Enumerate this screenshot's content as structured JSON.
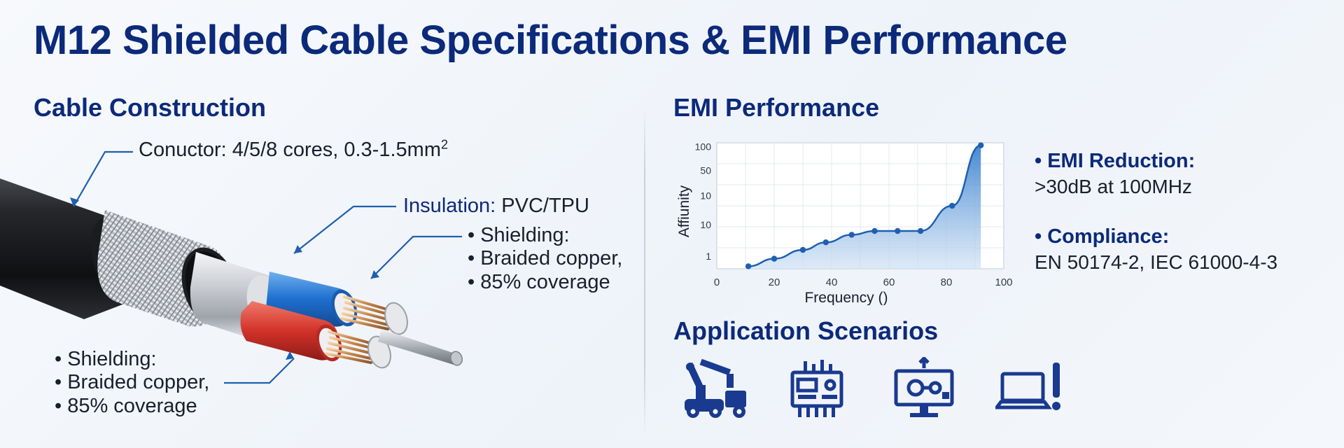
{
  "title": "M12 Shielded Cable Specifications & EMI Performance",
  "construction": {
    "heading": "Cable Construction",
    "conductor_label": "Conuctor: 4/5/8 cores, 0.3-1.5mm",
    "conductor_sup": "2",
    "insulation_key": "Insulation:",
    "insulation_value": " PVC/TPU",
    "shield_right": [
      "• Shielding:",
      "• Braided copper,",
      "• 85% coverage"
    ],
    "shield_left": [
      "• Shielding:",
      "• Braided copper,",
      "• 85% coverage"
    ]
  },
  "emi": {
    "heading": "EMI Performance",
    "stats": [
      {
        "label": "• EMI Reduction:",
        "value": ">30dB at 100MHz"
      },
      {
        "label": "• Compliance:",
        "value": "EN 50174-2, IEC 61000-4-3"
      }
    ]
  },
  "chart_data": {
    "type": "area",
    "title": "",
    "xlabel": "Frequency ()",
    "ylabel": "Affiunity",
    "x_tick_labels": [
      "0",
      "20",
      "40",
      "60",
      "80",
      "100"
    ],
    "y_tick_labels": [
      "1",
      "10",
      "10",
      "50",
      "100"
    ],
    "xlim": [
      0,
      100
    ],
    "ylim": [
      0,
      100
    ],
    "grid": true,
    "legend": "none",
    "colors": {
      "line": "#1f5fb0",
      "fill_top": "#3c83cf",
      "fill_bottom": "#cfe1f4",
      "point": "#1f5fb0"
    },
    "series": [
      {
        "x": [
          11,
          20,
          30,
          38,
          47,
          55,
          63,
          71,
          82,
          92
        ],
        "y": [
          2,
          8,
          15,
          21,
          27,
          30,
          30,
          30,
          50,
          98
        ]
      }
    ]
  },
  "applications": {
    "heading": "Application Scenarios",
    "icons": [
      "industrial-robot-icon",
      "control-panel-icon",
      "monitoring-display-icon",
      "laptop-alert-icon"
    ],
    "color": "#1a3a8f"
  }
}
